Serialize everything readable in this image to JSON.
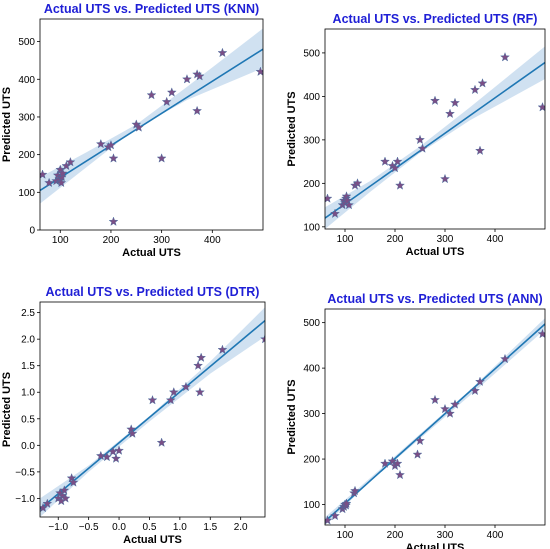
{
  "colors": {
    "title": "#1f1fd6",
    "line": "#1f77b4",
    "band": "#aac8e6",
    "marker": "#7a4f86",
    "marker_edge": "#3f6fa0"
  },
  "chart_data": [
    {
      "type": "scatter",
      "title": "Actual UTS vs. Predicted UTS (KNN)",
      "xlabel": "Actual UTS",
      "ylabel": "Predicted UTS",
      "xlim": [
        60,
        500
      ],
      "ylim": [
        0,
        560
      ],
      "xticks": [
        100,
        200,
        300,
        400
      ],
      "yticks": [
        0,
        100,
        200,
        300,
        400,
        500
      ],
      "regression": {
        "x": [
          60,
          500
        ],
        "y": [
          105,
          480
        ]
      },
      "band": {
        "x": [
          60,
          150,
          250,
          350,
          500
        ],
        "lower": [
          70,
          165,
          270,
          345,
          430
        ],
        "upper": [
          140,
          205,
          280,
          380,
          535
        ]
      },
      "x": [
        65,
        78,
        92,
        95,
        98,
        100,
        100,
        102,
        103,
        105,
        112,
        120,
        180,
        195,
        200,
        205,
        205,
        250,
        255,
        280,
        300,
        310,
        320,
        350,
        370,
        370,
        375,
        420,
        495
      ],
      "y": [
        147,
        125,
        130,
        145,
        135,
        160,
        132,
        125,
        140,
        150,
        170,
        180,
        228,
        220,
        225,
        190,
        22,
        280,
        272,
        358,
        190,
        340,
        365,
        400,
        316,
        413,
        408,
        470,
        420
      ]
    },
    {
      "type": "scatter",
      "title": "Actual UTS vs. Predicted UTS (RF)",
      "xlabel": "Actual UTS",
      "ylabel": "Predicted UTS",
      "xlim": [
        60,
        500
      ],
      "ylim": [
        95,
        555
      ],
      "xticks": [
        100,
        200,
        300,
        400
      ],
      "yticks": [
        100,
        200,
        300,
        400,
        500
      ],
      "regression": {
        "x": [
          60,
          500
        ],
        "y": [
          120,
          478
        ]
      },
      "band": {
        "x": [
          60,
          150,
          250,
          350,
          500
        ],
        "lower": [
          95,
          180,
          270,
          345,
          440
        ],
        "upper": [
          145,
          205,
          285,
          375,
          515
        ]
      },
      "x": [
        65,
        80,
        95,
        98,
        100,
        102,
        103,
        105,
        108,
        120,
        125,
        180,
        195,
        200,
        205,
        210,
        250,
        255,
        280,
        300,
        310,
        320,
        360,
        370,
        375,
        420,
        495
      ],
      "y": [
        165,
        130,
        150,
        160,
        155,
        165,
        170,
        160,
        150,
        195,
        200,
        250,
        240,
        235,
        250,
        195,
        300,
        280,
        390,
        210,
        360,
        385,
        415,
        275,
        430,
        490,
        375
      ]
    },
    {
      "type": "scatter",
      "title": "Actual UTS vs. Predicted UTS (DTR)",
      "xlabel": "Actual UTS",
      "ylabel": "Predicted UTS",
      "xlim": [
        -1.3,
        2.4
      ],
      "ylim": [
        -1.35,
        2.7
      ],
      "xticks": [
        -1.0,
        -0.5,
        0.0,
        0.5,
        1.0,
        1.5,
        2.0
      ],
      "yticks": [
        -1.0,
        -0.5,
        0.0,
        0.5,
        1.0,
        1.5,
        2.0,
        2.5
      ],
      "xtick_labels": [
        "−1.0",
        "−0.5",
        "0.0",
        "0.5",
        "1.0",
        "1.5",
        "2.0"
      ],
      "ytick_labels": [
        "−1.0",
        "−0.5",
        "0.0",
        "0.5",
        "1.0",
        "1.5",
        "2.0",
        "2.5"
      ],
      "regression": {
        "x": [
          -1.3,
          2.4
        ],
        "y": [
          -1.2,
          2.35
        ]
      },
      "band": {
        "x": [
          -1.3,
          -0.5,
          0.5,
          1.5,
          2.4
        ],
        "lower": [
          -1.35,
          -0.5,
          0.45,
          1.35,
          2.05
        ],
        "upper": [
          -1.0,
          -0.38,
          0.55,
          1.58,
          2.6
        ]
      },
      "x": [
        -1.25,
        -1.18,
        -1.0,
        -0.97,
        -0.95,
        -0.93,
        -0.9,
        -0.88,
        -0.78,
        -0.75,
        -0.3,
        -0.2,
        -0.1,
        -0.05,
        0.0,
        0.2,
        0.22,
        0.55,
        0.7,
        0.85,
        0.9,
        1.1,
        1.3,
        1.33,
        1.35,
        1.7,
        2.4
      ],
      "y": [
        -1.18,
        -1.1,
        -1.0,
        -0.9,
        -1.05,
        -0.95,
        -0.85,
        -1.0,
        -0.62,
        -0.7,
        -0.2,
        -0.22,
        -0.12,
        -0.25,
        -0.1,
        0.3,
        0.22,
        0.85,
        0.05,
        0.85,
        1.0,
        1.1,
        1.5,
        1.0,
        1.65,
        1.8,
        2.0
      ]
    },
    {
      "type": "scatter",
      "title": "Actual UTS vs. Predicted UTS (ANN)",
      "xlabel": "Actual UTS",
      "ylabel": "Predicted UTS",
      "xlim": [
        60,
        500
      ],
      "ylim": [
        55,
        530
      ],
      "xticks": [
        100,
        200,
        300,
        400
      ],
      "yticks": [
        100,
        200,
        300,
        400,
        500
      ],
      "regression": {
        "x": [
          60,
          500
        ],
        "y": [
          63,
          497
        ]
      },
      "band": {
        "x": [
          60,
          150,
          250,
          350,
          500
        ],
        "lower": [
          55,
          150,
          245,
          340,
          485
        ],
        "upper": [
          72,
          158,
          255,
          352,
          510
        ]
      },
      "x": [
        65,
        80,
        95,
        98,
        100,
        102,
        103,
        118,
        120,
        180,
        195,
        200,
        205,
        210,
        245,
        250,
        280,
        300,
        310,
        320,
        360,
        370,
        420,
        495
      ],
      "y": [
        65,
        75,
        90,
        95,
        100,
        98,
        102,
        125,
        130,
        190,
        195,
        185,
        190,
        165,
        210,
        240,
        330,
        310,
        300,
        320,
        350,
        370,
        420,
        475
      ]
    }
  ]
}
